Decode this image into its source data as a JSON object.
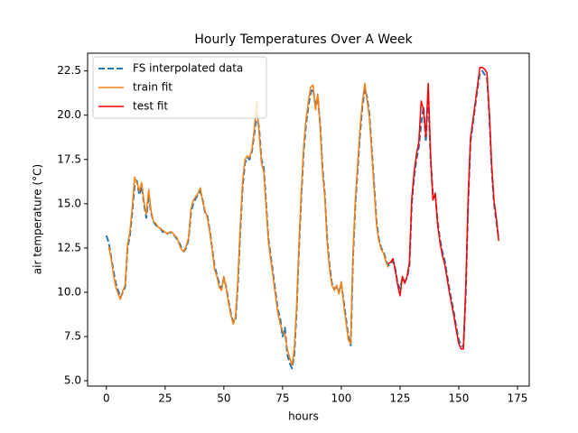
{
  "chart_data": {
    "type": "line",
    "title": "Hourly Temperatures Over A Week",
    "xlabel": "hours",
    "ylabel": "air temperature (°C)",
    "x": [
      0,
      1,
      2,
      3,
      4,
      5,
      6,
      7,
      8,
      9,
      10,
      11,
      12,
      13,
      14,
      15,
      16,
      17,
      18,
      19,
      20,
      21,
      22,
      23,
      24,
      25,
      26,
      27,
      28,
      29,
      30,
      31,
      32,
      33,
      34,
      35,
      36,
      37,
      38,
      39,
      40,
      41,
      42,
      43,
      44,
      45,
      46,
      47,
      48,
      49,
      50,
      51,
      52,
      53,
      54,
      55,
      56,
      57,
      58,
      59,
      60,
      61,
      62,
      63,
      64,
      65,
      66,
      67,
      68,
      69,
      70,
      71,
      72,
      73,
      74,
      75,
      76,
      77,
      78,
      79,
      80,
      81,
      82,
      83,
      84,
      85,
      86,
      87,
      88,
      89,
      90,
      91,
      92,
      93,
      94,
      95,
      96,
      97,
      98,
      99,
      100,
      101,
      102,
      103,
      104,
      105,
      106,
      107,
      108,
      109,
      110,
      111,
      112,
      113,
      114,
      115,
      116,
      117,
      118,
      119,
      120,
      121,
      122,
      123,
      124,
      125,
      126,
      127,
      128,
      129,
      130,
      131,
      132,
      133,
      134,
      135,
      136,
      137,
      138,
      139,
      140,
      141,
      142,
      143,
      144,
      145,
      146,
      147,
      148,
      149,
      150,
      151,
      152,
      153,
      154,
      155,
      156,
      157,
      158,
      159,
      160,
      161,
      162,
      163,
      164,
      165,
      166,
      167
    ],
    "series": [
      {
        "name": "FS interpolated data",
        "color": "#1f77b4",
        "dashed": true,
        "values": [
          13.2,
          12.8,
          12.0,
          11.2,
          10.5,
          10.1,
          9.7,
          10.0,
          10.3,
          12.5,
          13.2,
          14.5,
          16.0,
          16.3,
          15.5,
          16.0,
          15.0,
          14.2,
          15.5,
          14.5,
          14.0,
          13.8,
          13.7,
          13.6,
          13.4,
          13.4,
          13.3,
          13.4,
          13.3,
          13.2,
          13.0,
          12.8,
          12.5,
          12.3,
          12.5,
          13.0,
          14.5,
          15.0,
          15.3,
          15.5,
          15.7,
          15.2,
          14.5,
          14.3,
          13.5,
          12.5,
          11.5,
          11.0,
          10.5,
          10.2,
          10.8,
          10.3,
          9.5,
          8.8,
          8.3,
          8.5,
          10.5,
          13.5,
          16.0,
          17.3,
          17.6,
          17.5,
          18.0,
          19.0,
          20.0,
          19.3,
          17.5,
          17.0,
          15.0,
          13.0,
          12.0,
          11.0,
          10.0,
          9.0,
          8.5,
          7.5,
          8.0,
          6.5,
          6.0,
          5.7,
          6.5,
          9.0,
          12.5,
          15.5,
          18.0,
          19.5,
          20.5,
          21.3,
          21.5,
          20.5,
          21.0,
          19.5,
          17.0,
          15.5,
          13.0,
          11.5,
          10.5,
          10.2,
          10.3,
          10.0,
          10.5,
          9.5,
          8.5,
          7.5,
          7.0,
          12.0,
          15.0,
          17.0,
          19.0,
          20.5,
          21.5,
          21.0,
          20.0,
          18.0,
          16.0,
          14.0,
          13.0,
          12.5,
          12.3,
          11.8,
          11.5,
          11.6,
          11.8,
          11.3,
          10.5,
          10.2,
          10.8,
          10.6,
          10.8,
          11.5,
          15.0,
          16.5,
          17.5,
          18.2,
          19.5,
          20.5,
          18.5,
          21.3,
          17.5,
          15.5,
          15.5,
          14.0,
          13.0,
          12.3,
          11.8,
          11.0,
          10.2,
          9.5,
          8.8,
          8.0,
          7.3,
          7.0,
          6.9,
          10.0,
          15.0,
          18.5,
          19.5,
          20.5,
          21.5,
          22.4,
          22.5,
          22.3,
          22.2,
          20.0,
          17.0,
          15.0,
          14.0,
          13.0
        ]
      },
      {
        "name": "train fit",
        "color": "#ff7f0e",
        "dashed": false,
        "values": [
          null,
          12.6,
          11.9,
          11.0,
          10.3,
          9.9,
          9.6,
          10.1,
          10.4,
          12.7,
          13.4,
          14.8,
          16.5,
          16.2,
          15.7,
          16.2,
          15.1,
          14.4,
          15.8,
          14.6,
          14.0,
          13.9,
          13.7,
          13.6,
          13.5,
          13.4,
          13.3,
          13.4,
          13.4,
          13.2,
          13.1,
          12.7,
          12.4,
          12.3,
          12.6,
          13.1,
          14.7,
          15.2,
          15.4,
          15.6,
          15.9,
          15.1,
          14.6,
          14.2,
          13.4,
          12.4,
          11.3,
          10.9,
          10.3,
          10.1,
          10.9,
          10.2,
          9.4,
          8.7,
          8.2,
          8.6,
          10.8,
          13.8,
          16.3,
          17.5,
          17.7,
          17.6,
          18.1,
          19.3,
          20.8,
          19.0,
          17.3,
          16.8,
          14.8,
          12.8,
          11.8,
          10.8,
          9.8,
          8.8,
          8.2,
          7.8,
          7.6,
          6.8,
          6.3,
          5.9,
          6.8,
          9.3,
          12.8,
          15.8,
          18.3,
          19.8,
          20.8,
          21.6,
          21.7,
          20.3,
          21.2,
          19.3,
          16.8,
          15.3,
          12.8,
          11.3,
          10.4,
          10.1,
          10.4,
          9.9,
          10.6,
          9.3,
          8.3,
          7.3,
          7.1,
          12.3,
          15.3,
          17.3,
          19.3,
          20.8,
          21.8,
          20.8,
          19.8,
          17.8,
          15.8,
          13.8,
          12.9,
          12.4,
          12.2,
          11.7,
          11.4,
          null,
          null,
          null,
          null,
          null,
          null,
          null,
          null,
          null,
          null,
          null,
          null,
          null,
          null,
          null,
          null,
          null,
          null,
          null,
          null,
          null,
          null,
          null,
          null,
          null,
          null,
          null,
          null,
          null,
          null,
          null,
          null,
          null,
          null,
          null,
          null,
          null,
          null,
          null,
          null,
          null,
          null,
          null,
          null,
          null,
          null,
          null
        ]
      },
      {
        "name": "test fit",
        "color": "#ff0000",
        "dashed": false,
        "values": [
          null,
          null,
          null,
          null,
          null,
          null,
          null,
          null,
          null,
          null,
          null,
          null,
          null,
          null,
          null,
          null,
          null,
          null,
          null,
          null,
          null,
          null,
          null,
          null,
          null,
          null,
          null,
          null,
          null,
          null,
          null,
          null,
          null,
          null,
          null,
          null,
          null,
          null,
          null,
          null,
          null,
          null,
          null,
          null,
          null,
          null,
          null,
          null,
          null,
          null,
          null,
          null,
          null,
          null,
          null,
          null,
          null,
          null,
          null,
          null,
          null,
          null,
          null,
          null,
          null,
          null,
          null,
          null,
          null,
          null,
          null,
          null,
          null,
          null,
          null,
          null,
          null,
          null,
          null,
          null,
          null,
          null,
          null,
          null,
          null,
          null,
          null,
          null,
          null,
          null,
          null,
          null,
          null,
          null,
          null,
          null,
          null,
          null,
          null,
          null,
          null,
          null,
          null,
          null,
          null,
          null,
          null,
          null,
          null,
          null,
          null,
          null,
          null,
          null,
          null,
          null,
          null,
          null,
          null,
          null,
          11.6,
          11.7,
          11.9,
          11.2,
          10.4,
          9.8,
          10.9,
          10.5,
          10.9,
          11.7,
          15.3,
          16.8,
          17.8,
          18.5,
          20.8,
          20.3,
          18.8,
          21.8,
          17.8,
          15.2,
          15.6,
          13.8,
          12.8,
          12.1,
          11.6,
          10.8,
          10.0,
          9.3,
          8.6,
          7.8,
          7.1,
          6.8,
          6.8,
          10.3,
          15.3,
          18.7,
          19.7,
          20.7,
          21.7,
          22.7,
          22.7,
          22.6,
          22.4,
          20.2,
          17.2,
          15.2,
          14.2,
          12.9
        ]
      }
    ],
    "xlim": [
      -8,
      180
    ],
    "ylim": [
      4.7,
      23.5
    ],
    "xticks": [
      0,
      25,
      50,
      75,
      100,
      125,
      150,
      175
    ],
    "yticks": [
      {
        "value": 5,
        "label": "5.0"
      },
      7.5,
      {
        "value": 10,
        "label": "10.0"
      },
      12.5,
      {
        "value": 15,
        "label": "15.0"
      },
      17.5,
      {
        "value": 20,
        "label": "20.0"
      },
      22.5
    ],
    "grid": false,
    "legend": "upper left"
  }
}
